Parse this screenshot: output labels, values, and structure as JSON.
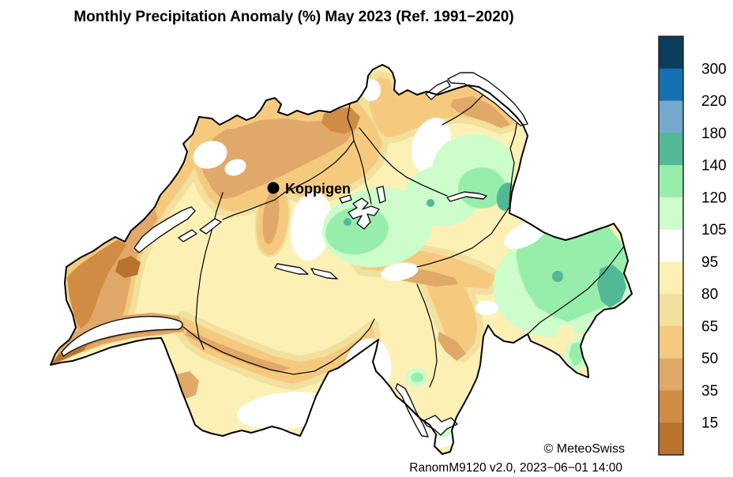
{
  "title": "Monthly Precipitation Anomaly (%) May 2023  (Ref. 1991−2020)",
  "station": {
    "name": "Koppigen"
  },
  "attribution": {
    "copyright": "© MeteoSwiss",
    "version_line": "RanomM9120 v2.0, 2023−06−01 14:00"
  },
  "colorbar": {
    "tick_labels": [
      "300",
      "220",
      "180",
      "140",
      "120",
      "105",
      "95",
      "80",
      "65",
      "50",
      "35",
      "15"
    ],
    "colors_top_to_bottom": [
      "#0b3d5c",
      "#1570b4",
      "#74a8cc",
      "#52b896",
      "#97eeab",
      "#ccfdcb",
      "#ffffff",
      "#fdf0b4",
      "#f1e09e",
      "#f6ca7e",
      "#e0a869",
      "#d08c44",
      "#ba722f"
    ]
  },
  "chart_data": {
    "type": "heatmap",
    "map_region": "Switzerland",
    "variable": "Monthly precipitation anomaly (%)",
    "month": "May 2023",
    "reference_period": "1991−2020",
    "legend_breaks_percent": [
      15,
      35,
      50,
      65,
      80,
      95,
      105,
      120,
      140,
      180,
      220,
      300
    ],
    "legend_position": "right",
    "marked_station": {
      "name": "Koppigen"
    },
    "pattern_summary": {
      "west_and_northwest": "below normal, roughly 15–80% (brown/orange along Jura and Lake Geneva)",
      "center_plateau": "near normal, 65–105% (pale yellow/white)",
      "central_and_east": "above normal, 105–180% (green, teal spots up to 140–180% in Appenzell and Engadine)",
      "south_valais_ticino": "near to below normal, 50–105%"
    }
  }
}
